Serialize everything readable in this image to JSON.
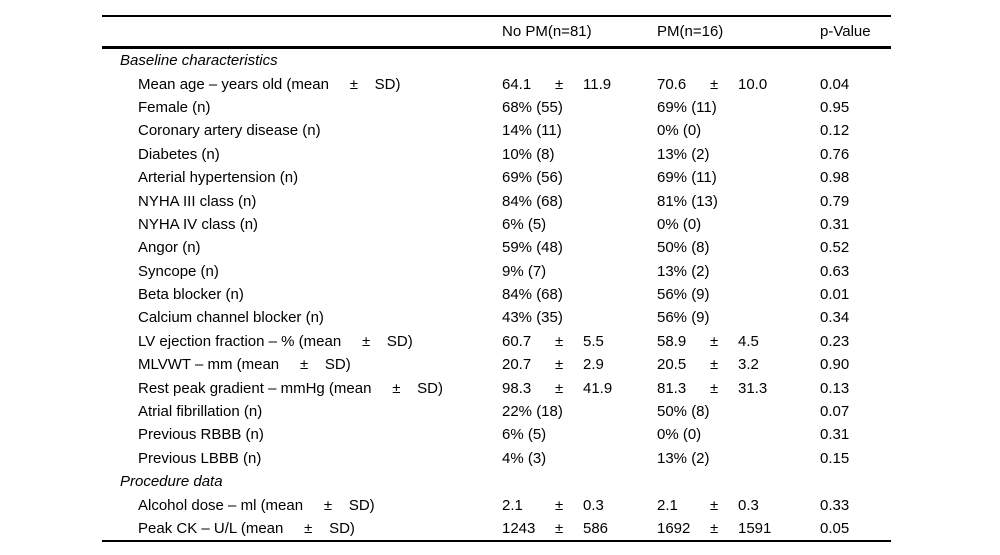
{
  "table": {
    "columns": [
      "",
      "No PM(n=81)",
      "PM(n=16)",
      "p-Value"
    ],
    "rows": [
      {
        "kind": "section",
        "label": "Baseline characteristics"
      },
      {
        "kind": "data",
        "label": "Mean age – years old (mean     ±    SD)",
        "no_pm": [
          "64.1",
          "±",
          "11.9"
        ],
        "pm": [
          "70.6",
          "±",
          "10.0"
        ],
        "p": "0.04"
      },
      {
        "kind": "data",
        "label": "Female (n)",
        "no_pm": "68% (55)",
        "pm": "69% (11)",
        "p": "0.95"
      },
      {
        "kind": "data",
        "label": "Coronary artery disease (n)",
        "no_pm": "14% (11)",
        "pm": "0% (0)",
        "p": "0.12"
      },
      {
        "kind": "data",
        "label": "Diabetes (n)",
        "no_pm": "10% (8)",
        "pm": "13% (2)",
        "p": "0.76"
      },
      {
        "kind": "data",
        "label": "Arterial hypertension (n)",
        "no_pm": "69% (56)",
        "pm": "69% (11)",
        "p": "0.98"
      },
      {
        "kind": "data",
        "label": "NYHA III class (n)",
        "no_pm": "84% (68)",
        "pm": "81% (13)",
        "p": "0.79"
      },
      {
        "kind": "data",
        "label": "NYHA IV class (n)",
        "no_pm": "6% (5)",
        "pm": "0% (0)",
        "p": "0.31"
      },
      {
        "kind": "data",
        "label": "Angor (n)",
        "no_pm": "59% (48)",
        "pm": "50% (8)",
        "p": "0.52"
      },
      {
        "kind": "data",
        "label": "Syncope (n)",
        "no_pm": "9% (7)",
        "pm": "13% (2)",
        "p": "0.63"
      },
      {
        "kind": "data",
        "label": "Beta blocker (n)",
        "no_pm": "84% (68)",
        "pm": "56% (9)",
        "p": "0.01"
      },
      {
        "kind": "data",
        "label": "Calcium channel blocker (n)",
        "no_pm": "43% (35)",
        "pm": "56% (9)",
        "p": "0.34"
      },
      {
        "kind": "data",
        "label": "LV ejection fraction – % (mean     ±    SD)",
        "no_pm": [
          "60.7",
          "±",
          "5.5"
        ],
        "pm": [
          "58.9",
          "±",
          "4.5"
        ],
        "p": "0.23"
      },
      {
        "kind": "data",
        "label": "MLVWT – mm (mean     ±    SD)",
        "no_pm": [
          "20.7",
          "±",
          "2.9"
        ],
        "pm": [
          "20.5",
          "±",
          "3.2"
        ],
        "p": "0.90"
      },
      {
        "kind": "data",
        "label": "Rest peak gradient – mmHg (mean     ±    SD)",
        "no_pm": [
          "98.3",
          "±",
          "41.9"
        ],
        "pm": [
          "81.3",
          "±",
          "31.3"
        ],
        "p": "0.13"
      },
      {
        "kind": "data",
        "label": "Atrial fibrillation (n)",
        "no_pm": "22% (18)",
        "pm": "50% (8)",
        "p": "0.07"
      },
      {
        "kind": "data",
        "label": "Previous RBBB (n)",
        "no_pm": "6% (5)",
        "pm": "0% (0)",
        "p": "0.31"
      },
      {
        "kind": "data",
        "label": "Previous LBBB (n)",
        "no_pm": "4% (3)",
        "pm": "13% (2)",
        "p": "0.15"
      },
      {
        "kind": "section",
        "label": "Procedure data"
      },
      {
        "kind": "data",
        "label": "Alcohol dose – ml (mean     ±    SD)",
        "no_pm": [
          "2.1",
          "±",
          "0.3"
        ],
        "pm": [
          "2.1",
          "±",
          "0.3"
        ],
        "p": "0.33"
      },
      {
        "kind": "data",
        "label": "Peak CK – U/L (mean     ±    SD)",
        "no_pm": [
          "1243",
          "±",
          "586"
        ],
        "pm": [
          "1692",
          "±",
          "1591"
        ],
        "p": "0.05"
      }
    ]
  }
}
